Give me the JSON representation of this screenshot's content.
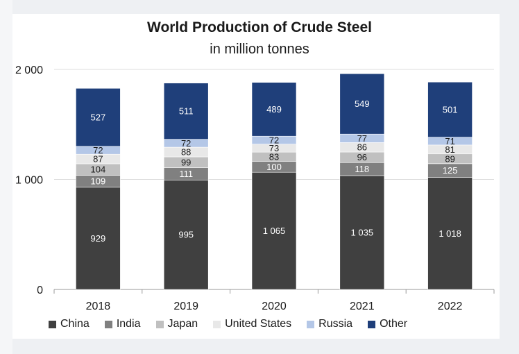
{
  "chart_data": {
    "type": "bar",
    "stacked": true,
    "title": "World Production of Crude Steel",
    "subtitle": "in million tonnes",
    "xlabel": "",
    "ylabel": "",
    "ylim": [
      0,
      2000
    ],
    "yticks": [
      0,
      1000,
      2000
    ],
    "ytick_labels": [
      "0",
      "1 000",
      "2 000"
    ],
    "grid": true,
    "legend_position": "bottom",
    "categories": [
      "2018",
      "2019",
      "2020",
      "2021",
      "2022"
    ],
    "series": [
      {
        "name": "China",
        "color": "#404040",
        "values": [
          929,
          995,
          1065,
          1035,
          1018
        ],
        "labels": [
          "929",
          "995",
          "1 065",
          "1 035",
          "1 018"
        ]
      },
      {
        "name": "India",
        "color": "#808080",
        "values": [
          109,
          111,
          100,
          118,
          125
        ],
        "labels": [
          "109",
          "111",
          "100",
          "118",
          "125"
        ]
      },
      {
        "name": "Japan",
        "color": "#c0c0c0",
        "values": [
          104,
          99,
          83,
          96,
          89
        ],
        "labels": [
          "104",
          "99",
          "83",
          "96",
          "89"
        ]
      },
      {
        "name": "United States",
        "color": "#e8e8e8",
        "values": [
          87,
          88,
          73,
          86,
          81
        ],
        "labels": [
          "87",
          "88",
          "73",
          "86",
          "81"
        ]
      },
      {
        "name": "Russia",
        "color": "#b4c7e7",
        "values": [
          72,
          72,
          72,
          77,
          71
        ],
        "labels": [
          "72",
          "72",
          "72",
          "77",
          "71"
        ]
      },
      {
        "name": "Other",
        "color": "#1f3f7a",
        "values": [
          527,
          511,
          489,
          549,
          501
        ],
        "labels": [
          "527",
          "511",
          "489",
          "549",
          "501"
        ]
      }
    ]
  }
}
